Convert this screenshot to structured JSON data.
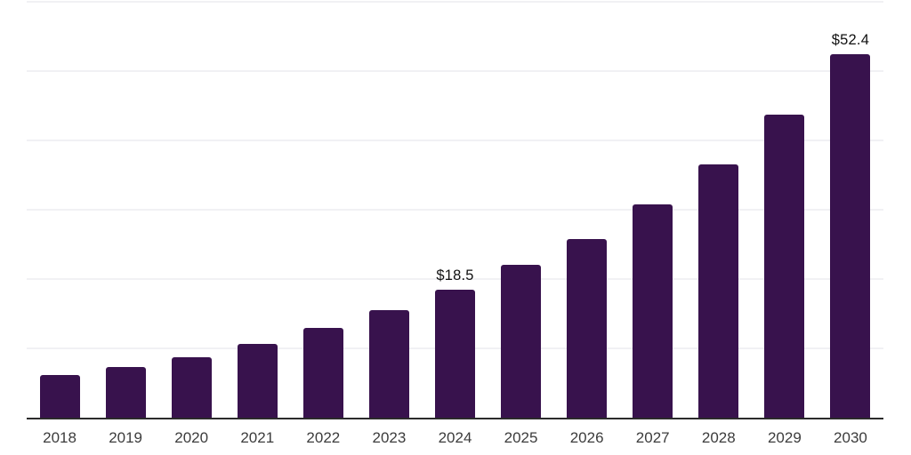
{
  "chart_data": {
    "type": "bar",
    "title": "",
    "xlabel": "",
    "ylabel": "",
    "categories": [
      "2018",
      "2019",
      "2020",
      "2021",
      "2022",
      "2023",
      "2024",
      "2025",
      "2026",
      "2027",
      "2028",
      "2029",
      "2030"
    ],
    "values": [
      6.1,
      7.3,
      8.7,
      10.7,
      12.9,
      15.5,
      18.5,
      22.0,
      25.8,
      30.8,
      36.5,
      43.7,
      52.4
    ],
    "data_labels": [
      {
        "category": "2024",
        "text": "$18.5"
      },
      {
        "category": "2030",
        "text": "$52.4"
      }
    ],
    "ylim": [
      0,
      60
    ],
    "grid": true,
    "grid_step": 10,
    "y_tick_labels_visible": false,
    "legend": "none"
  },
  "colors": {
    "bar": "#38124D",
    "gridline": "#F1F1F4",
    "axis": "#2B2B2B",
    "tick_label": "#3C3C3C",
    "data_label": "#111111",
    "background": "#FFFFFF"
  }
}
